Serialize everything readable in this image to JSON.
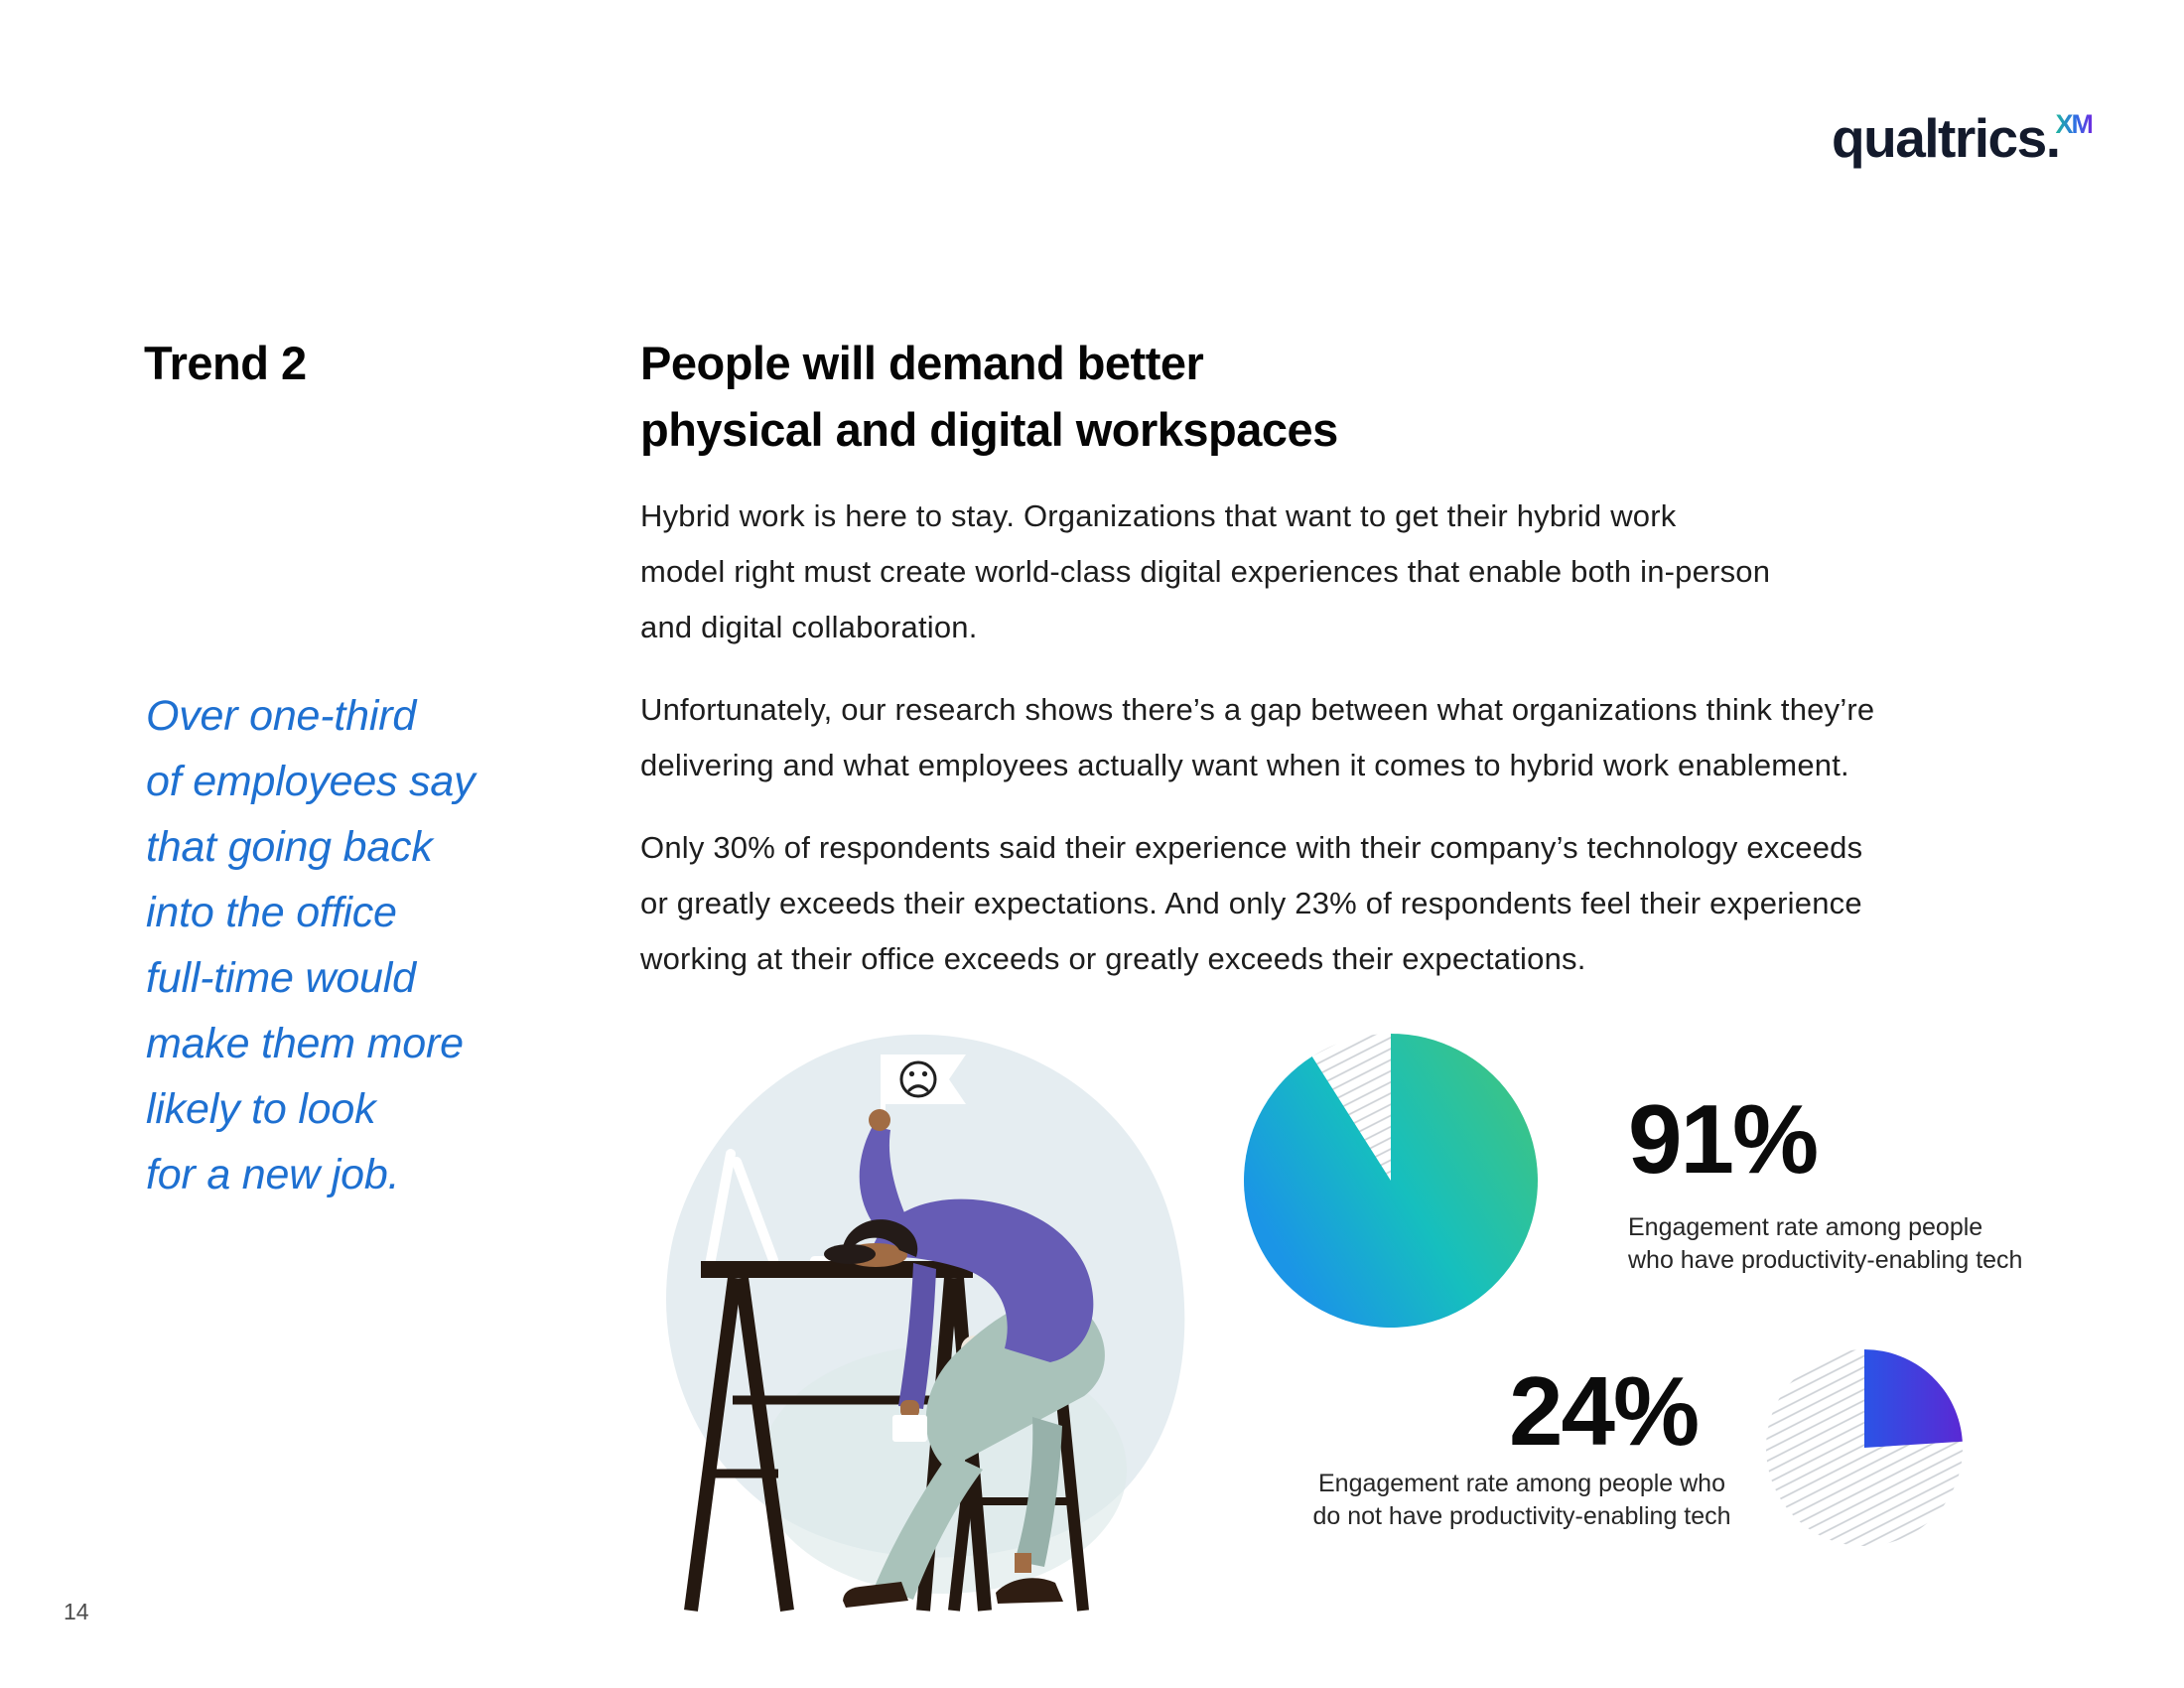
{
  "page": {
    "number": "14",
    "background": "#ffffff"
  },
  "logo": {
    "brand": "qualtrics.",
    "xm": "XM"
  },
  "colors": {
    "accent_blue_quote": "#1e70d1",
    "logo_navy": "#131a2c",
    "xm_gradient": [
      "#1fb5a0",
      "#2f6fe4",
      "#6c2ee0"
    ],
    "heading_black": "#050505"
  },
  "trend_label": "Trend 2",
  "headline": "People will demand better\nphysical and digital workspaces",
  "paragraphs": [
    "Hybrid work is here to stay. Organizations that want to get their hybrid work\nmodel right must create world-class digital experiences that enable both in-person\nand digital collaboration.",
    "Unfortunately, our research shows there’s a gap between what organizations think they’re\ndelivering and what employees actually want when it comes to hybrid work enablement.",
    "Only 30% of respondents said their experience with their company’s technology exceeds\nor greatly exceeds their expectations. And only 23% of respondents feel their experience\nworking at their office exceeds or greatly exceeds their expectations."
  ],
  "pull_quote": "Over one-third\nof employees say\nthat going back\ninto the office\nfull-time would\nmake them more\nlikely to look\nfor a new job.",
  "illustration": {
    "description": "Frustrated employee slumped face-down on a desk, raising a white flag with a sad face, office stool and monitor in background"
  },
  "chart_data": [
    {
      "type": "pie",
      "value": 91,
      "value_label": "91%",
      "caption": "Engagement rate among people\nwho have productivity-enabling tech",
      "gradient": [
        "#3fc481",
        "#16bfbe",
        "#1b95e6"
      ],
      "remainder_pct": 9,
      "remainder_style": "hatched",
      "hatch_color": "#cdd1d6"
    },
    {
      "type": "pie",
      "value": 24,
      "value_label": "24%",
      "caption": "Engagement rate among people who\ndo not have productivity-enabling tech",
      "gradient": [
        "#2b53e6",
        "#5a29d4"
      ],
      "remainder_pct": 76,
      "remainder_style": "hatched",
      "hatch_color": "#cdd1d6"
    }
  ]
}
